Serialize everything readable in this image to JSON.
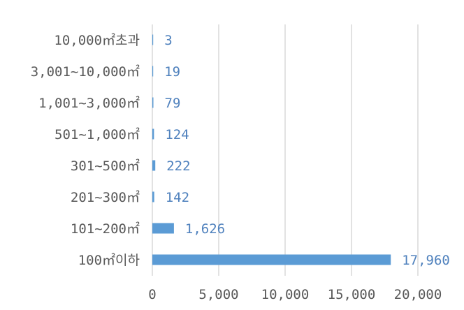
{
  "chart_data": {
    "type": "bar",
    "orientation": "horizontal",
    "categories": [
      "10,000㎡초과",
      "3,001~10,000㎡",
      "1,001~3,000㎡",
      "501~1,000㎡",
      "301~500㎡",
      "201~300㎡",
      "101~200㎡",
      "100㎡이하"
    ],
    "values": [
      3,
      19,
      79,
      124,
      222,
      142,
      1626,
      17960
    ],
    "value_labels": [
      "3",
      "19",
      "79",
      "124",
      "222",
      "142",
      "1,626",
      "17,960"
    ],
    "xlim": [
      0,
      20000
    ],
    "xticks": [
      0,
      5000,
      10000,
      15000,
      20000
    ],
    "xtick_labels": [
      "0",
      "5,000",
      "10,000",
      "15,000",
      "20,000"
    ],
    "grid": "vertical",
    "legend": "none",
    "bar_color": "#5b9bd5",
    "label_color": "#4f81bd"
  }
}
